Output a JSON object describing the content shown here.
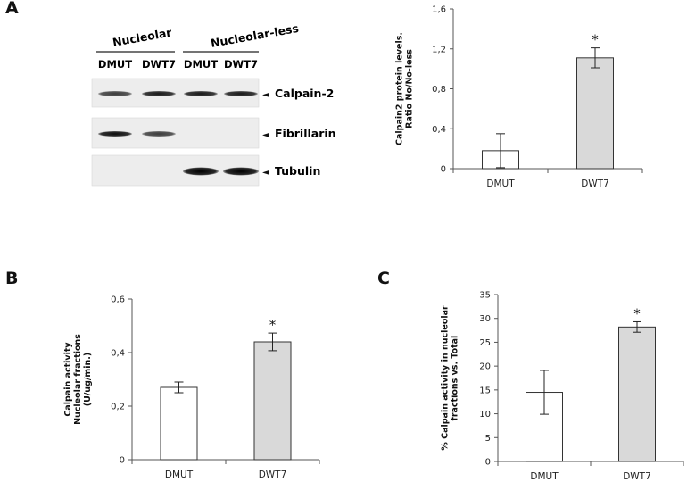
{
  "panels": {
    "a": {
      "letter": "A"
    },
    "b": {
      "letter": "B"
    },
    "c": {
      "letter": "C"
    }
  },
  "blot": {
    "group_labels": [
      "Nucleolar",
      "Nucleolar-less"
    ],
    "lane_labels": [
      "DMUT",
      "DWT7",
      "DMUT",
      "DWT7"
    ],
    "rows": [
      {
        "label": "Calpain-2",
        "arrow": "◄",
        "band_intensity": [
          0.75,
          0.9,
          0.9,
          0.9
        ]
      },
      {
        "label": "Fibrillarin",
        "arrow": "◄",
        "band_intensity": [
          0.95,
          0.75,
          0,
          0
        ]
      },
      {
        "label": "Tubulin",
        "arrow": "◄",
        "band_intensity": [
          0,
          0,
          1,
          1
        ]
      }
    ]
  },
  "chart_data": [
    {
      "type": "bar",
      "id": "A",
      "categories": [
        "DMUT",
        "DWT7"
      ],
      "values": [
        0.18,
        1.11
      ],
      "errors": [
        0.17,
        0.1
      ],
      "bar_colors": [
        "#ffffff",
        "#d9d9d9"
      ],
      "annotations": [
        "",
        "*"
      ],
      "ylabel": [
        "Calpain2 protein levels.",
        "Ratio No/No-less"
      ],
      "ylim": [
        0,
        1.6
      ],
      "yticks": [
        0,
        0.4,
        0.8,
        1.2,
        1.6
      ],
      "ytick_labels": [
        "0",
        "0,4",
        "0,8",
        "1,2",
        "1,6"
      ],
      "grid": false
    },
    {
      "type": "bar",
      "id": "B",
      "categories": [
        "DMUT",
        "DWT7"
      ],
      "values": [
        0.27,
        0.44
      ],
      "errors": [
        0.02,
        0.033
      ],
      "bar_colors": [
        "#ffffff",
        "#d9d9d9"
      ],
      "annotations": [
        "",
        "*"
      ],
      "ylabel": [
        "Calpain activity",
        "Nucleolar fractions",
        "(U/ug/min.)"
      ],
      "ylim": [
        0,
        0.6
      ],
      "yticks": [
        0,
        0.2,
        0.4,
        0.6
      ],
      "ytick_labels": [
        "0",
        "0,2",
        "0,4",
        "0,6"
      ],
      "grid": false
    },
    {
      "type": "bar",
      "id": "C",
      "categories": [
        "DMUT",
        "DWT7"
      ],
      "values": [
        14.5,
        28.2
      ],
      "errors": [
        4.6,
        1.1
      ],
      "bar_colors": [
        "#ffffff",
        "#d9d9d9"
      ],
      "annotations": [
        "",
        "*"
      ],
      "ylabel": [
        "% Calpain activity in nucleolar",
        "fractions vs. Total"
      ],
      "ylim": [
        0,
        35
      ],
      "yticks": [
        0,
        5,
        10,
        15,
        20,
        25,
        30,
        35
      ],
      "ytick_labels": [
        "0",
        "5",
        "10",
        "15",
        "20",
        "25",
        "30",
        "35"
      ],
      "grid": false
    }
  ]
}
